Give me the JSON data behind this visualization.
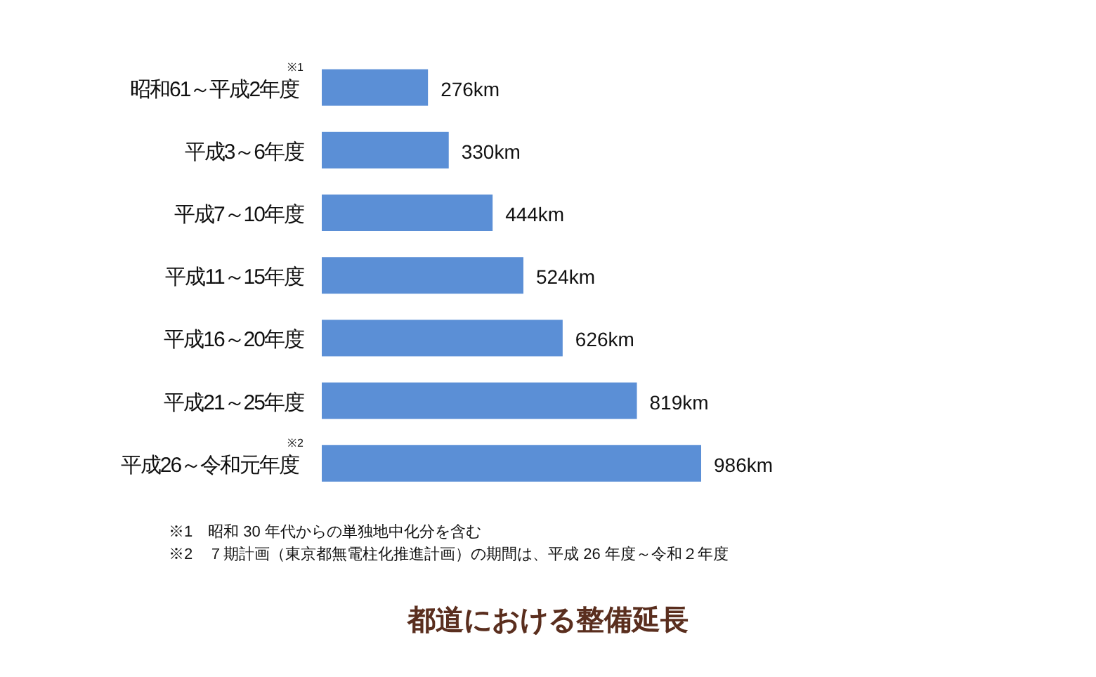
{
  "chart_data": {
    "type": "bar",
    "orientation": "horizontal",
    "title": "都道における整備延長",
    "categories": [
      "昭和61～平成2年度$^{※1}$",
      "平成3～6年度",
      "平成7～10年度",
      "平成11～15年度",
      "平成16～20年度",
      "平成21～25年度",
      "平成26～令和元年度$^{※2}$"
    ],
    "values": [
      276,
      330,
      444,
      524,
      626,
      819,
      986
    ],
    "value_labels": [
      "276km",
      "330km",
      "444km",
      "524km",
      "626km",
      "819km",
      "986km"
    ],
    "color": "#5b8fd6",
    "annotations": [
      "※1　昭和 30 年代からの単独地中化分を含む",
      "※2　７期計画（東京都無電柱化推進計画）の期間は、平成 26 年度～令和２年度"
    ]
  }
}
